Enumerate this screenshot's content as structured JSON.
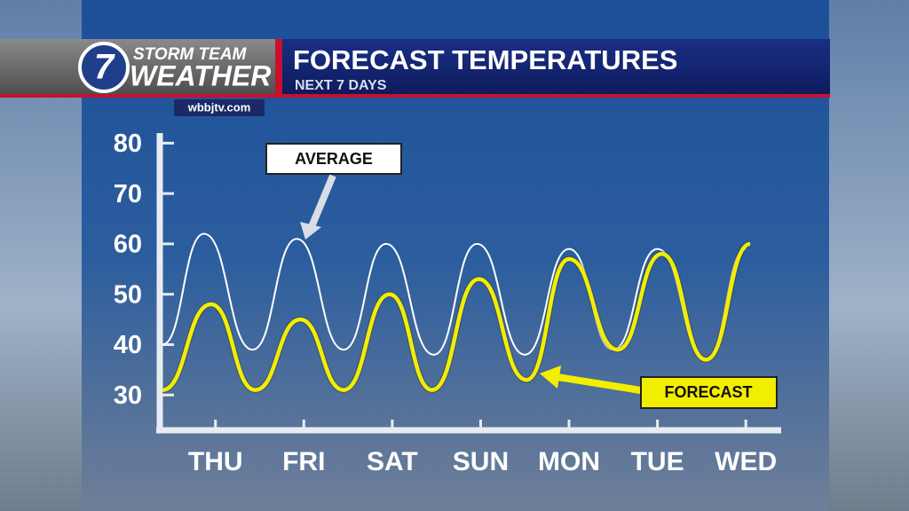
{
  "header": {
    "logo_number": "7",
    "logo_line1": "STORM TEAM",
    "logo_line2": "WEATHER",
    "website": "wbbjtv.com"
  },
  "chart_data": {
    "type": "line",
    "title": "FORECAST TEMPERATURES",
    "subtitle": "NEXT 7 DAYS",
    "xlim": [
      -0.68,
      6.4
    ],
    "xticks": [
      {
        "value": 0,
        "label": "THU"
      },
      {
        "value": 1,
        "label": "FRI"
      },
      {
        "value": 2,
        "label": "SAT"
      },
      {
        "value": 3,
        "label": "SUN"
      },
      {
        "value": 4,
        "label": "MON"
      },
      {
        "value": 5,
        "label": "TUE"
      },
      {
        "value": 6,
        "label": "WED"
      }
    ],
    "ylim": [
      23,
      82
    ],
    "yticks": [
      30,
      40,
      50,
      60,
      70,
      80
    ],
    "series": [
      {
        "name": "AVERAGE",
        "color": "#ffffff",
        "x": [
          -0.6,
          -0.13,
          0.42,
          0.92,
          1.45,
          1.93,
          2.47,
          2.96,
          3.5,
          4.0,
          4.5,
          5.0,
          5.55,
          6.0
        ],
        "values": [
          40,
          62,
          39,
          61,
          39,
          60,
          38,
          60,
          38,
          59,
          39,
          59,
          37,
          59
        ]
      },
      {
        "name": "FORECAST",
        "color": "#f2ee00",
        "x": [
          -0.6,
          -0.05,
          0.45,
          0.96,
          1.45,
          1.97,
          2.45,
          2.98,
          3.52,
          4.0,
          4.55,
          5.05,
          5.55,
          6.05
        ],
        "values": [
          31,
          48,
          31,
          45,
          31,
          50,
          31,
          53,
          33,
          57,
          39,
          58,
          37,
          60
        ]
      }
    ]
  }
}
